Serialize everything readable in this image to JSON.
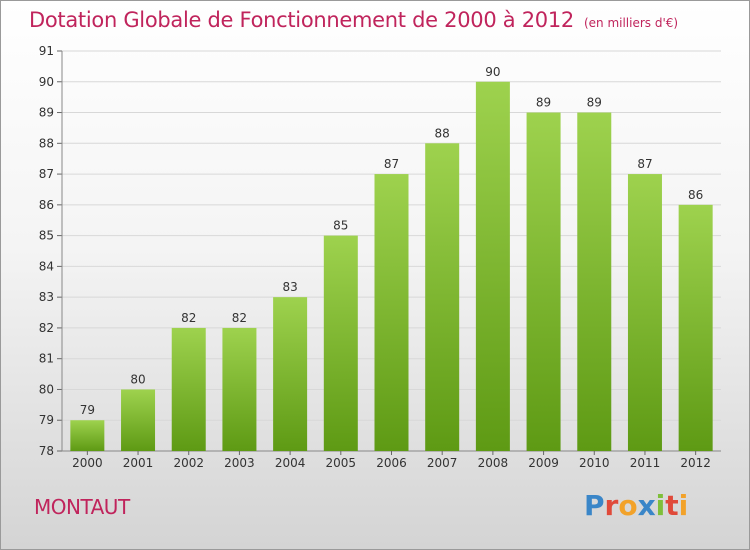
{
  "title": "Dotation Globale de Fonctionnement de 2000 à 2012",
  "subtitle": "(en milliers d'€)",
  "commune": "MONTAUT",
  "logo": {
    "text": "Proxiti",
    "letters": [
      {
        "char": "P",
        "color": "#3a86c8"
      },
      {
        "char": "r",
        "color": "#e04a3a"
      },
      {
        "char": "o",
        "color": "#f2a22a"
      },
      {
        "char": "x",
        "color": "#3a86c8"
      },
      {
        "char": "i",
        "color": "#7fbf3a"
      },
      {
        "char": "t",
        "color": "#e04a3a"
      },
      {
        "char": "i",
        "color": "#f2a22a"
      }
    ]
  },
  "colors": {
    "bar_top": "#9ed24e",
    "bar_bottom": "#5e9a14",
    "title": "#c0245c",
    "grid": "#d8d8d8"
  },
  "chart_data": {
    "type": "bar",
    "title": "Dotation Globale de Fonctionnement de 2000 à 2012",
    "subtitle": "(en milliers d'€)",
    "categories": [
      "2000",
      "2001",
      "2002",
      "2003",
      "2004",
      "2005",
      "2006",
      "2007",
      "2008",
      "2009",
      "2010",
      "2011",
      "2012"
    ],
    "values": [
      79,
      80,
      82,
      82,
      83,
      85,
      87,
      88,
      90,
      89,
      89,
      87,
      86
    ],
    "ylim": [
      78,
      91
    ],
    "yticks": [
      78,
      79,
      80,
      81,
      82,
      83,
      84,
      85,
      86,
      87,
      88,
      89,
      90,
      91
    ],
    "grid": true,
    "data_labels": true
  }
}
